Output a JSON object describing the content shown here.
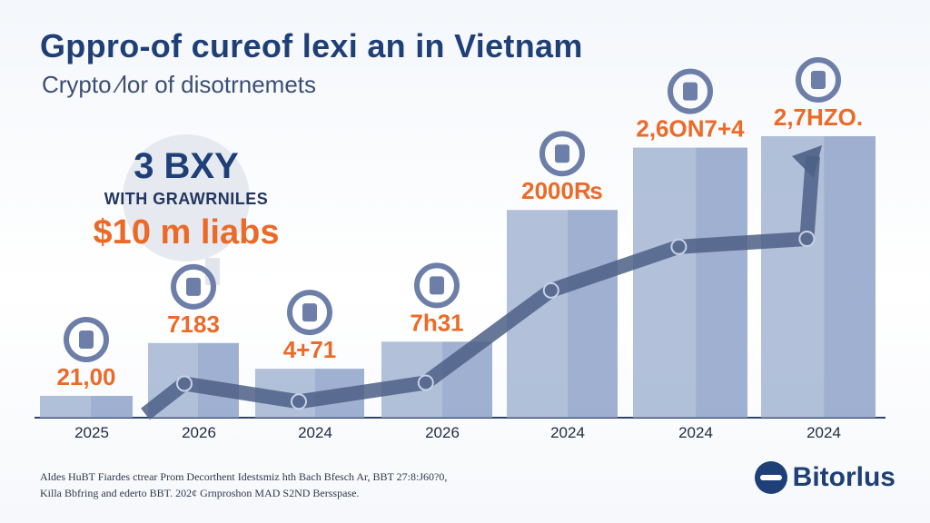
{
  "title": "Gppro-of cureof lexi an in Vietnam",
  "subtitle": "Crypto ⁄lor of disotrnemets",
  "callout": {
    "big": "3 BXY",
    "mid": "WITH GRAWRNILES",
    "money": "$10 m liabs"
  },
  "footnote": {
    "line1": "Aldes HuBT Fiardes ctrear Prom Decorthent Idestsmiz hth Bach Bfesch Ar, BBT 27:8:J60?0,",
    "line2": "Killa Bbfring and ederto BBT. 202¢ Grnproshon MAD S2ND Bersspase."
  },
  "brand": {
    "name": "Bitorlus"
  },
  "colors": {
    "title": "#1f3f77",
    "accent": "#ec6a28",
    "bar": "#9fb0d0",
    "bar_dark": "#7e93bf",
    "trend": "#4c5f86"
  },
  "chart_data": {
    "type": "bar",
    "categories": [
      "2025",
      "2026",
      "2024",
      "2026",
      "2024",
      "2024",
      "2024"
    ],
    "values": [
      21,
      71.83,
      47.1,
      73.1,
      200,
      260,
      271
    ],
    "value_labels": [
      "21,00",
      "7183",
      "4+71",
      "7h31",
      "2000₨",
      "2,6ON7+4",
      "2,7HZO."
    ],
    "icons": [
      "yen-coin-icon",
      "bitcoin-chip-icon",
      "anvil-icon",
      "gear-coin-icon",
      "circuit-disc-icon",
      "robot-icon",
      "broadcast-icon"
    ],
    "trend_line": true,
    "grid": false,
    "legend": "none"
  }
}
